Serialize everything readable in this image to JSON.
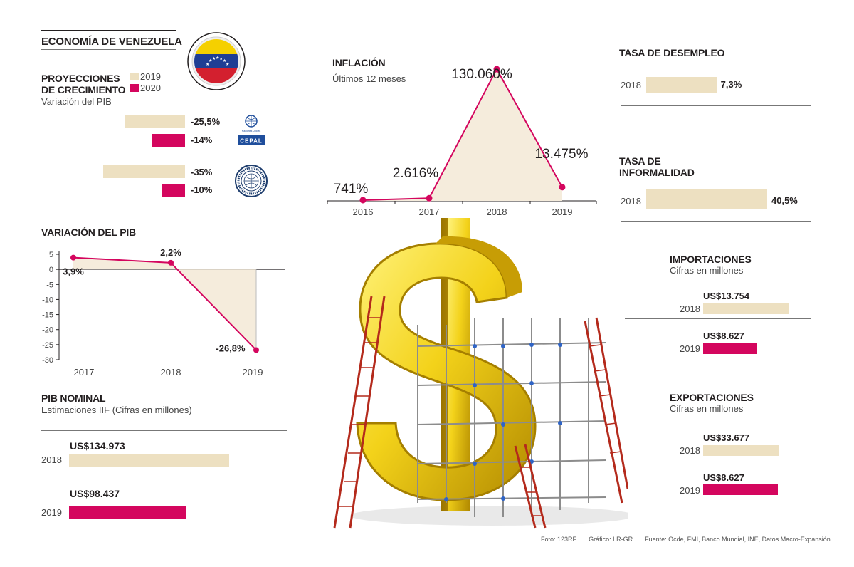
{
  "title": "ECONOMÍA DE VENEZUELA",
  "colors": {
    "y2019": "#ede0c1",
    "y2020": "#d4065e",
    "accent": "#d4065e",
    "area": "#f5ecdc"
  },
  "proyecciones": {
    "title": "PROYECCIONES DE CRECIMIENTO",
    "title_line1": "PROYECCIONES",
    "title_line2": "DE CRECIMIENTO",
    "subtitle": "Variación del PIB",
    "legend_2019": "2019",
    "legend_2020": "2020",
    "cepal_label": "CEPAL",
    "un_label": "Naciones Unidas",
    "cepal": {
      "v2019": -25.5,
      "v2020": -14,
      "l2019": "-25,5%",
      "l2020": "-14%"
    },
    "fmi": {
      "v2019": -35,
      "v2020": -10,
      "l2019": "-35%",
      "l2020": "-10%"
    }
  },
  "inflacion": {
    "title": "INFLACIÓN",
    "subtitle": "Últimos 12 meses",
    "chart_data": {
      "type": "area",
      "categories": [
        "2016",
        "2017",
        "2018",
        "2019"
      ],
      "values": [
        741,
        2616,
        130060,
        13475
      ],
      "labels": [
        "741%",
        "2.616%",
        "130.060%",
        "13.475%"
      ]
    }
  },
  "pib": {
    "title": "VARIACIÓN DEL PIB",
    "chart_data": {
      "type": "line",
      "categories": [
        "2017",
        "2018",
        "2019"
      ],
      "values": [
        3.9,
        2.2,
        -26.8
      ],
      "labels": [
        "3,9%",
        "2,2%",
        "-26,8%"
      ],
      "yticks": [
        "5",
        "0",
        "-5",
        "-10",
        "-15",
        "-20",
        "-25",
        "-30"
      ],
      "ylim": [
        -30,
        5
      ]
    }
  },
  "pib_nominal": {
    "title": "PIB NOMINAL",
    "subtitle": "Estimaciones IIF (Cifras en millones)",
    "chart_data": {
      "type": "bar",
      "categories": [
        "2018",
        "2019"
      ],
      "values": [
        134973,
        98437
      ],
      "labels": [
        "US$134.973",
        "US$98.437"
      ]
    }
  },
  "desempleo": {
    "title": "TASA DE DESEMPLEO",
    "year": "2018",
    "value": 7.3,
    "label": "7,3%"
  },
  "informalidad": {
    "title_line1": "TASA DE",
    "title_line2": "INFORMALIDAD",
    "year": "2018",
    "value": 40.5,
    "label": "40,5%"
  },
  "importaciones": {
    "title": "IMPORTACIONES",
    "subtitle": "Cifras en millones",
    "chart_data": {
      "type": "bar",
      "categories": [
        "2018",
        "2019"
      ],
      "values": [
        13754,
        8627
      ],
      "labels": [
        "US$13.754",
        "US$8.627"
      ]
    }
  },
  "exportaciones": {
    "title": "EXPORTACIONES",
    "subtitle": "Cifras en millones",
    "chart_data": {
      "type": "bar",
      "categories": [
        "2018",
        "2019"
      ],
      "values": [
        33677,
        8627
      ],
      "labels": [
        "US$33.677",
        "US$8.627"
      ]
    }
  },
  "credits": {
    "foto": "Foto: 123RF",
    "grafico": "Gráfico: LR-GR",
    "fuente": "Fuente: Ocde, FMI, Banco Mundial, INE, Datos Macro-Expansión"
  }
}
